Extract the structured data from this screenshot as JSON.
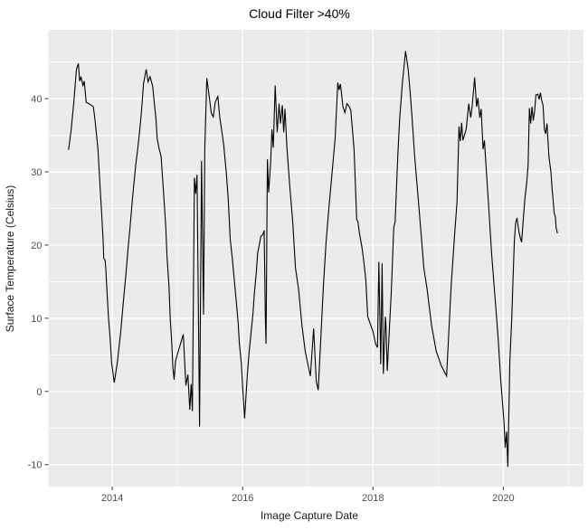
{
  "title": "Cloud Filter >40%",
  "axes": {
    "x": {
      "label": "Image Capture Date"
    },
    "y": {
      "label": "Surface Temperature (Celsius)"
    }
  },
  "colors": {
    "figure_bg": "#FFFFFF",
    "panel_bg": "#EBEBEB",
    "grid": "#FFFFFF",
    "line": "#000000",
    "tick_mark": "#333333",
    "tick_text": "#4D4D4D",
    "title_text": "#000000"
  },
  "chart_data": {
    "type": "line",
    "title": "Cloud Filter >40%",
    "xlabel": "Image Capture Date",
    "ylabel": "Surface Temperature (Celsius)",
    "grid": "on",
    "legend": "none",
    "x_range": [
      2013.02,
      2021.23
    ],
    "y_range": [
      -13.0,
      49.4
    ],
    "x_ticks": [
      {
        "value": 2014,
        "label": "2014"
      },
      {
        "value": 2016,
        "label": "2016"
      },
      {
        "value": 2018,
        "label": "2018"
      },
      {
        "value": 2020,
        "label": "2020"
      }
    ],
    "x_minor": [
      2015,
      2017,
      2019,
      2021
    ],
    "y_ticks": [
      {
        "value": 40,
        "label": "40"
      },
      {
        "value": 30,
        "label": "30"
      },
      {
        "value": 20,
        "label": "20"
      },
      {
        "value": 10,
        "label": "10"
      },
      {
        "value": 0,
        "label": "0"
      },
      {
        "value": -10,
        "label": "-10"
      }
    ],
    "y_minor": [
      45,
      35,
      25,
      15,
      5,
      -5
    ],
    "series": [
      {
        "name": "surface_temperature_celsius",
        "points": [
          [
            2013.33,
            33.0
          ],
          [
            2013.37,
            35.8
          ],
          [
            2013.41,
            39.5
          ],
          [
            2013.45,
            44.0
          ],
          [
            2013.48,
            44.8
          ],
          [
            2013.5,
            42.4
          ],
          [
            2013.52,
            43.0
          ],
          [
            2013.55,
            41.8
          ],
          [
            2013.57,
            42.4
          ],
          [
            2013.6,
            39.5
          ],
          [
            2013.64,
            39.3
          ],
          [
            2013.68,
            39.1
          ],
          [
            2013.71,
            38.9
          ],
          [
            2013.73,
            37.4
          ],
          [
            2013.75,
            35.8
          ],
          [
            2013.78,
            33.1
          ],
          [
            2013.8,
            30.0
          ],
          [
            2013.82,
            26.9
          ],
          [
            2013.84,
            23.9
          ],
          [
            2013.86,
            20.6
          ],
          [
            2013.87,
            18.2
          ],
          [
            2013.89,
            17.9
          ],
          [
            2013.9,
            16.9
          ],
          [
            2013.92,
            13.6
          ],
          [
            2013.94,
            10.3
          ],
          [
            2013.97,
            7.0
          ],
          [
            2013.99,
            3.9
          ],
          [
            2014.03,
            1.2
          ],
          [
            2014.08,
            4.1
          ],
          [
            2014.13,
            8.2
          ],
          [
            2014.17,
            12.3
          ],
          [
            2014.21,
            16.0
          ],
          [
            2014.24,
            19.3
          ],
          [
            2014.27,
            22.2
          ],
          [
            2014.31,
            26.3
          ],
          [
            2014.36,
            30.9
          ],
          [
            2014.39,
            33.1
          ],
          [
            2014.42,
            35.6
          ],
          [
            2014.45,
            38.4
          ],
          [
            2014.48,
            42.1
          ],
          [
            2014.52,
            44.0
          ],
          [
            2014.55,
            42.3
          ],
          [
            2014.58,
            43.0
          ],
          [
            2014.62,
            41.7
          ],
          [
            2014.64,
            39.9
          ],
          [
            2014.67,
            37.2
          ],
          [
            2014.69,
            34.5
          ],
          [
            2014.72,
            33.1
          ],
          [
            2014.75,
            32.1
          ],
          [
            2014.79,
            26.8
          ],
          [
            2014.82,
            22.6
          ],
          [
            2014.84,
            18.5
          ],
          [
            2014.87,
            14.4
          ],
          [
            2014.89,
            9.9
          ],
          [
            2014.91,
            7.0
          ],
          [
            2014.93,
            3.3
          ],
          [
            2014.95,
            1.6
          ],
          [
            2014.97,
            4.1
          ],
          [
            2015.0,
            5.1
          ],
          [
            2015.09,
            7.8
          ],
          [
            2015.13,
            0.8
          ],
          [
            2015.16,
            2.3
          ],
          [
            2015.19,
            -2.5
          ],
          [
            2015.21,
            1.0
          ],
          [
            2015.23,
            -2.7
          ],
          [
            2015.26,
            29.2
          ],
          [
            2015.28,
            27.0
          ],
          [
            2015.3,
            29.6
          ],
          [
            2015.34,
            -4.8
          ],
          [
            2015.37,
            31.5
          ],
          [
            2015.4,
            10.5
          ],
          [
            2015.42,
            33.2
          ],
          [
            2015.45,
            42.8
          ],
          [
            2015.49,
            40.1
          ],
          [
            2015.52,
            38.0
          ],
          [
            2015.55,
            37.5
          ],
          [
            2015.58,
            39.5
          ],
          [
            2015.62,
            40.3
          ],
          [
            2015.65,
            37.4
          ],
          [
            2015.68,
            35.6
          ],
          [
            2015.71,
            33.7
          ],
          [
            2015.75,
            29.8
          ],
          [
            2015.78,
            26.3
          ],
          [
            2015.81,
            20.8
          ],
          [
            2015.84,
            18.3
          ],
          [
            2015.87,
            15.5
          ],
          [
            2015.9,
            12.5
          ],
          [
            2015.93,
            9.5
          ],
          [
            2015.95,
            6.6
          ],
          [
            2015.98,
            3.8
          ],
          [
            2016.0,
            0.7
          ],
          [
            2016.03,
            -3.7
          ],
          [
            2016.07,
            1.9
          ],
          [
            2016.1,
            5.4
          ],
          [
            2016.13,
            8.1
          ],
          [
            2016.16,
            10.7
          ],
          [
            2016.18,
            13.4
          ],
          [
            2016.21,
            16.2
          ],
          [
            2016.23,
            18.9
          ],
          [
            2016.26,
            20.2
          ],
          [
            2016.28,
            21.2
          ],
          [
            2016.31,
            21.4
          ],
          [
            2016.33,
            22.0
          ],
          [
            2016.35,
            9.7
          ],
          [
            2016.36,
            6.5
          ],
          [
            2016.38,
            31.7
          ],
          [
            2016.4,
            27.2
          ],
          [
            2016.43,
            31.3
          ],
          [
            2016.45,
            35.8
          ],
          [
            2016.47,
            33.3
          ],
          [
            2016.5,
            41.8
          ],
          [
            2016.53,
            35.4
          ],
          [
            2016.56,
            39.3
          ],
          [
            2016.58,
            36.6
          ],
          [
            2016.61,
            39.1
          ],
          [
            2016.63,
            35.4
          ],
          [
            2016.65,
            38.6
          ],
          [
            2016.68,
            33.3
          ],
          [
            2016.72,
            28.4
          ],
          [
            2016.77,
            23.0
          ],
          [
            2016.81,
            16.9
          ],
          [
            2016.86,
            13.8
          ],
          [
            2016.91,
            9.0
          ],
          [
            2016.96,
            5.5
          ],
          [
            2017.02,
            2.9
          ],
          [
            2017.04,
            2.1
          ],
          [
            2017.09,
            8.6
          ],
          [
            2017.13,
            1.4
          ],
          [
            2017.16,
            0.2
          ],
          [
            2017.2,
            7.4
          ],
          [
            2017.24,
            14.4
          ],
          [
            2017.28,
            20.3
          ],
          [
            2017.32,
            24.7
          ],
          [
            2017.37,
            29.6
          ],
          [
            2017.42,
            34.6
          ],
          [
            2017.46,
            42.2
          ],
          [
            2017.48,
            41.2
          ],
          [
            2017.5,
            42.0
          ],
          [
            2017.52,
            40.5
          ],
          [
            2017.54,
            38.9
          ],
          [
            2017.57,
            38.1
          ],
          [
            2017.6,
            39.3
          ],
          [
            2017.63,
            39.0
          ],
          [
            2017.66,
            38.4
          ],
          [
            2017.71,
            33.1
          ],
          [
            2017.75,
            23.5
          ],
          [
            2017.77,
            23.2
          ],
          [
            2017.79,
            21.7
          ],
          [
            2017.83,
            19.8
          ],
          [
            2017.86,
            17.7
          ],
          [
            2017.89,
            15.2
          ],
          [
            2017.92,
            10.2
          ],
          [
            2017.96,
            9.2
          ],
          [
            2018.0,
            8.2
          ],
          [
            2018.04,
            6.5
          ],
          [
            2018.07,
            6.0
          ],
          [
            2018.09,
            17.7
          ],
          [
            2018.12,
            3.7
          ],
          [
            2018.14,
            17.5
          ],
          [
            2018.16,
            2.4
          ],
          [
            2018.19,
            10.2
          ],
          [
            2018.2,
            9.0
          ],
          [
            2018.22,
            2.8
          ],
          [
            2018.28,
            13.5
          ],
          [
            2018.32,
            22.4
          ],
          [
            2018.34,
            23.2
          ],
          [
            2018.38,
            32.1
          ],
          [
            2018.41,
            37.2
          ],
          [
            2018.45,
            42.0
          ],
          [
            2018.5,
            46.5
          ],
          [
            2018.54,
            44.0
          ],
          [
            2018.57,
            40.9
          ],
          [
            2018.6,
            37.4
          ],
          [
            2018.64,
            32.1
          ],
          [
            2018.69,
            26.8
          ],
          [
            2018.74,
            21.4
          ],
          [
            2018.78,
            16.9
          ],
          [
            2018.83,
            14.0
          ],
          [
            2018.9,
            9.0
          ],
          [
            2018.97,
            5.5
          ],
          [
            2019.05,
            3.5
          ],
          [
            2019.13,
            2.1
          ],
          [
            2019.2,
            14.4
          ],
          [
            2019.25,
            21.0
          ],
          [
            2019.29,
            25.9
          ],
          [
            2019.32,
            36.2
          ],
          [
            2019.34,
            34.2
          ],
          [
            2019.36,
            36.7
          ],
          [
            2019.38,
            34.3
          ],
          [
            2019.43,
            35.8
          ],
          [
            2019.47,
            39.3
          ],
          [
            2019.5,
            37.4
          ],
          [
            2019.52,
            38.8
          ],
          [
            2019.56,
            42.9
          ],
          [
            2019.59,
            38.9
          ],
          [
            2019.61,
            40.1
          ],
          [
            2019.64,
            37.4
          ],
          [
            2019.66,
            38.6
          ],
          [
            2019.69,
            33.1
          ],
          [
            2019.71,
            34.3
          ],
          [
            2019.74,
            30.0
          ],
          [
            2019.78,
            24.7
          ],
          [
            2019.82,
            18.9
          ],
          [
            2019.87,
            13.2
          ],
          [
            2019.92,
            7.4
          ],
          [
            2019.96,
            1.6
          ],
          [
            2020.01,
            -4.1
          ],
          [
            2020.03,
            -7.7
          ],
          [
            2020.05,
            -5.5
          ],
          [
            2020.07,
            -10.3
          ],
          [
            2020.1,
            4.1
          ],
          [
            2020.13,
            9.9
          ],
          [
            2020.15,
            15.6
          ],
          [
            2020.17,
            20.6
          ],
          [
            2020.19,
            23.1
          ],
          [
            2020.21,
            23.7
          ],
          [
            2020.24,
            21.8
          ],
          [
            2020.26,
            21.0
          ],
          [
            2020.28,
            20.4
          ],
          [
            2020.31,
            23.9
          ],
          [
            2020.33,
            26.3
          ],
          [
            2020.36,
            28.6
          ],
          [
            2020.38,
            30.9
          ],
          [
            2020.4,
            38.7
          ],
          [
            2020.42,
            36.6
          ],
          [
            2020.44,
            38.9
          ],
          [
            2020.46,
            37.0
          ],
          [
            2020.48,
            38.3
          ],
          [
            2020.5,
            40.5
          ],
          [
            2020.53,
            40.6
          ],
          [
            2020.55,
            39.9
          ],
          [
            2020.57,
            40.8
          ],
          [
            2020.59,
            39.7
          ],
          [
            2020.61,
            39.1
          ],
          [
            2020.63,
            35.8
          ],
          [
            2020.65,
            35.2
          ],
          [
            2020.67,
            36.6
          ],
          [
            2020.68,
            35.0
          ],
          [
            2020.7,
            32.1
          ],
          [
            2020.73,
            30.0
          ],
          [
            2020.75,
            27.6
          ],
          [
            2020.76,
            26.6
          ],
          [
            2020.78,
            24.4
          ],
          [
            2020.8,
            23.8
          ],
          [
            2020.81,
            22.4
          ],
          [
            2020.83,
            21.6
          ]
        ]
      }
    ]
  }
}
